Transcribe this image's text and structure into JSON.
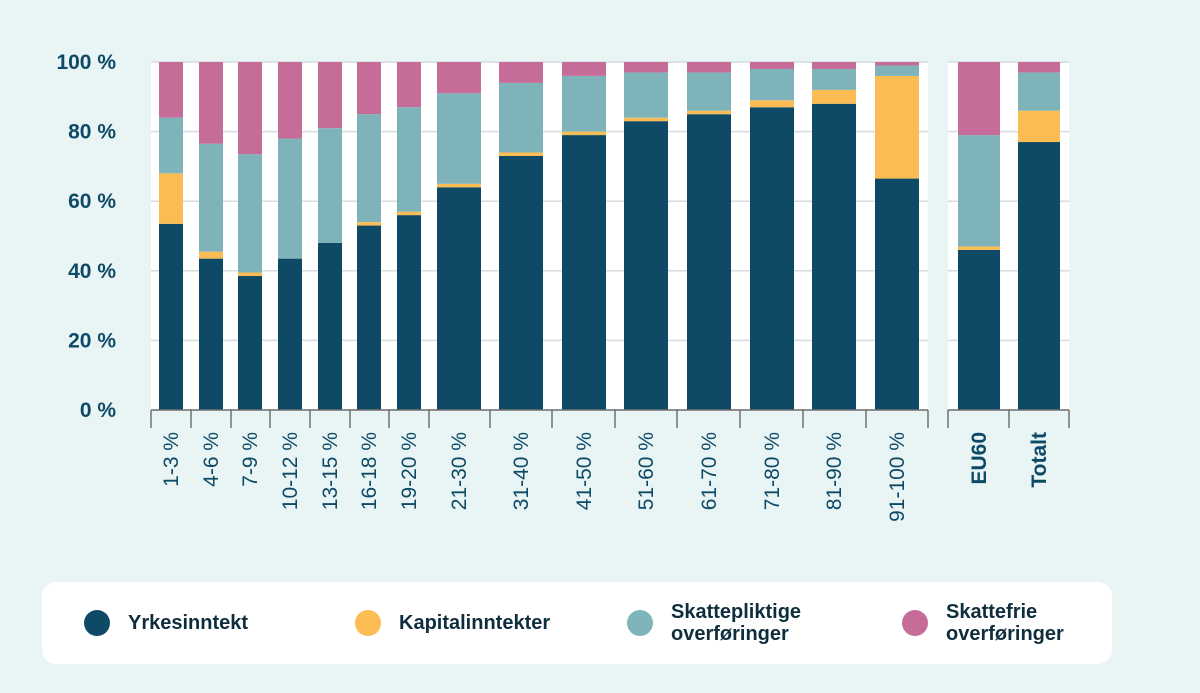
{
  "chart_data": {
    "type": "bar",
    "stacked": true,
    "categories": [
      "1-3 %",
      "4-6 %",
      "7-9 %",
      "10-12 %",
      "13-15 %",
      "16-18 %",
      "19-20 %",
      "21-30 %",
      "31-40 %",
      "41-50 %",
      "51-60 %",
      "61-70 %",
      "71-80 %",
      "81-90 %",
      "91-100 %",
      "EU60",
      "Totalt"
    ],
    "ylim": [
      0,
      100
    ],
    "yticks": [
      "0 %",
      "20 %",
      "40 %",
      "60 %",
      "80 %",
      "100 %"
    ],
    "grid": true,
    "legend_placement": "bottom",
    "series": [
      {
        "name": "Yrkesinntekt",
        "color": "#0e4a66",
        "values": [
          53.5,
          43.5,
          38.5,
          43.5,
          48,
          53,
          56,
          64,
          73,
          79,
          83,
          85,
          87,
          88,
          66.5,
          46,
          77
        ]
      },
      {
        "name": "Kapitalinntekter",
        "color": "#fbbd53",
        "values": [
          14.5,
          2,
          1,
          0,
          0,
          1,
          1,
          1,
          1,
          1,
          1,
          1,
          2,
          4,
          29.5,
          1,
          9
        ]
      },
      {
        "name": "Skattepliktige overføringer",
        "color": "#7eb3ba",
        "values": [
          16,
          31,
          34,
          34.5,
          33,
          31,
          30,
          26,
          20,
          16,
          13,
          11,
          9,
          6,
          3,
          32,
          11
        ]
      },
      {
        "name": "Skattefrie overføringer",
        "color": "#c56d98",
        "values": [
          16,
          23.5,
          26.5,
          22,
          19,
          15,
          13,
          9,
          6,
          4,
          3,
          3,
          2,
          2,
          1,
          21,
          3
        ]
      }
    ]
  },
  "legend": {
    "items": [
      {
        "label": "Yrkesinntekt",
        "color": "#0e4a66"
      },
      {
        "label": "Kapitalinntekter",
        "color": "#fbbd53"
      },
      {
        "label": "Skattepliktige\noverføringer",
        "color": "#7eb3ba"
      },
      {
        "label": "Skattefrie\noverføringer",
        "color": "#c56d98"
      }
    ]
  }
}
